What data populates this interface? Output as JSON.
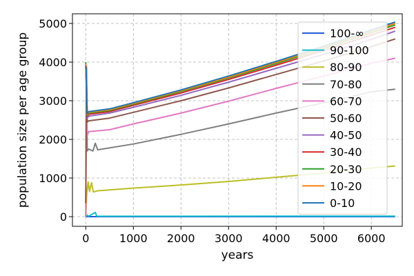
{
  "chart_data": {
    "type": "line",
    "title": "",
    "xlabel": "years",
    "ylabel": "population size per age group",
    "xlim": [
      -280,
      6650
    ],
    "ylim": [
      -250,
      5250
    ],
    "xticks": [
      0,
      1000,
      2000,
      3000,
      4000,
      5000,
      6000
    ],
    "yticks": [
      0,
      1000,
      2000,
      3000,
      4000,
      5000
    ],
    "grid": true,
    "legend_position": "right",
    "series": [
      {
        "name": "100-∞",
        "color": "#1f5bd8",
        "points": [
          [
            0,
            0
          ],
          [
            6500,
            0
          ]
        ]
      },
      {
        "name": "90-100",
        "color": "#17becf",
        "points": [
          [
            0,
            0
          ],
          [
            30,
            40
          ],
          [
            60,
            10
          ],
          [
            200,
            110
          ],
          [
            230,
            15
          ],
          [
            400,
            10
          ],
          [
            6500,
            15
          ]
        ]
      },
      {
        "name": "80-90",
        "color": "#bcbd22",
        "points": [
          [
            0,
            0
          ],
          [
            20,
            600
          ],
          [
            50,
            900
          ],
          [
            80,
            650
          ],
          [
            120,
            880
          ],
          [
            160,
            640
          ],
          [
            250,
            670
          ],
          [
            1000,
            740
          ],
          [
            2000,
            820
          ],
          [
            3000,
            910
          ],
          [
            4000,
            1020
          ],
          [
            5000,
            1130
          ],
          [
            6000,
            1260
          ],
          [
            6500,
            1310
          ]
        ]
      },
      {
        "name": "70-80",
        "color": "#7f7f7f",
        "points": [
          [
            0,
            0
          ],
          [
            15,
            3800
          ],
          [
            30,
            1700
          ],
          [
            60,
            1750
          ],
          [
            150,
            1700
          ],
          [
            200,
            1900
          ],
          [
            250,
            1730
          ],
          [
            1000,
            1880
          ],
          [
            2000,
            2130
          ],
          [
            3000,
            2400
          ],
          [
            4000,
            2680
          ],
          [
            5000,
            2950
          ],
          [
            6000,
            3230
          ],
          [
            6500,
            3300
          ]
        ]
      },
      {
        "name": "60-70",
        "color": "#e377c2",
        "points": [
          [
            0,
            0
          ],
          [
            15,
            3900
          ],
          [
            30,
            2100
          ],
          [
            60,
            2200
          ],
          [
            500,
            2250
          ],
          [
            1000,
            2400
          ],
          [
            2000,
            2680
          ],
          [
            3000,
            2990
          ],
          [
            4000,
            3320
          ],
          [
            5000,
            3640
          ],
          [
            6000,
            3970
          ],
          [
            6500,
            4100
          ]
        ]
      },
      {
        "name": "50-60",
        "color": "#8c564b",
        "points": [
          [
            0,
            350
          ],
          [
            15,
            3850
          ],
          [
            30,
            2450
          ],
          [
            60,
            2480
          ],
          [
            500,
            2550
          ],
          [
            1000,
            2700
          ],
          [
            2000,
            3000
          ],
          [
            3000,
            3330
          ],
          [
            4000,
            3680
          ],
          [
            5000,
            4030
          ],
          [
            6000,
            4400
          ],
          [
            6500,
            4600
          ]
        ]
      },
      {
        "name": "40-50",
        "color": "#9467bd",
        "points": [
          [
            0,
            3900
          ],
          [
            15,
            3200
          ],
          [
            30,
            2550
          ],
          [
            60,
            2600
          ],
          [
            500,
            2680
          ],
          [
            1000,
            2830
          ],
          [
            2000,
            3140
          ],
          [
            3000,
            3480
          ],
          [
            4000,
            3840
          ],
          [
            5000,
            4200
          ],
          [
            6000,
            4590
          ],
          [
            6500,
            4800
          ]
        ]
      },
      {
        "name": "30-40",
        "color": "#d62728",
        "points": [
          [
            0,
            3950
          ],
          [
            15,
            3300
          ],
          [
            30,
            2600
          ],
          [
            60,
            2650
          ],
          [
            500,
            2720
          ],
          [
            1000,
            2880
          ],
          [
            2000,
            3200
          ],
          [
            3000,
            3550
          ],
          [
            4000,
            3920
          ],
          [
            5000,
            4300
          ],
          [
            6000,
            4700
          ],
          [
            6500,
            4900
          ]
        ]
      },
      {
        "name": "20-30",
        "color": "#2ca02c",
        "points": [
          [
            0,
            4000
          ],
          [
            15,
            3400
          ],
          [
            30,
            2620
          ],
          [
            60,
            2680
          ],
          [
            500,
            2750
          ],
          [
            1000,
            2910
          ],
          [
            2000,
            3240
          ],
          [
            3000,
            3590
          ],
          [
            4000,
            3960
          ],
          [
            5000,
            4350
          ],
          [
            6000,
            4760
          ],
          [
            6500,
            4960
          ]
        ]
      },
      {
        "name": "10-20",
        "color": "#ff7f0e",
        "points": [
          [
            0,
            3950
          ],
          [
            15,
            3450
          ],
          [
            30,
            2640
          ],
          [
            60,
            2700
          ],
          [
            500,
            2770
          ],
          [
            1000,
            2930
          ],
          [
            2000,
            3260
          ],
          [
            3000,
            3610
          ],
          [
            4000,
            3990
          ],
          [
            5000,
            4380
          ],
          [
            6000,
            4790
          ],
          [
            6500,
            5000
          ]
        ]
      },
      {
        "name": "0-10",
        "color": "#1f77b4",
        "points": [
          [
            0,
            3900
          ],
          [
            15,
            3500
          ],
          [
            30,
            2660
          ],
          [
            60,
            2720
          ],
          [
            500,
            2790
          ],
          [
            1000,
            2950
          ],
          [
            2000,
            3280
          ],
          [
            3000,
            3640
          ],
          [
            4000,
            4020
          ],
          [
            5000,
            4410
          ],
          [
            6000,
            4830
          ],
          [
            6500,
            5040
          ]
        ]
      }
    ]
  }
}
